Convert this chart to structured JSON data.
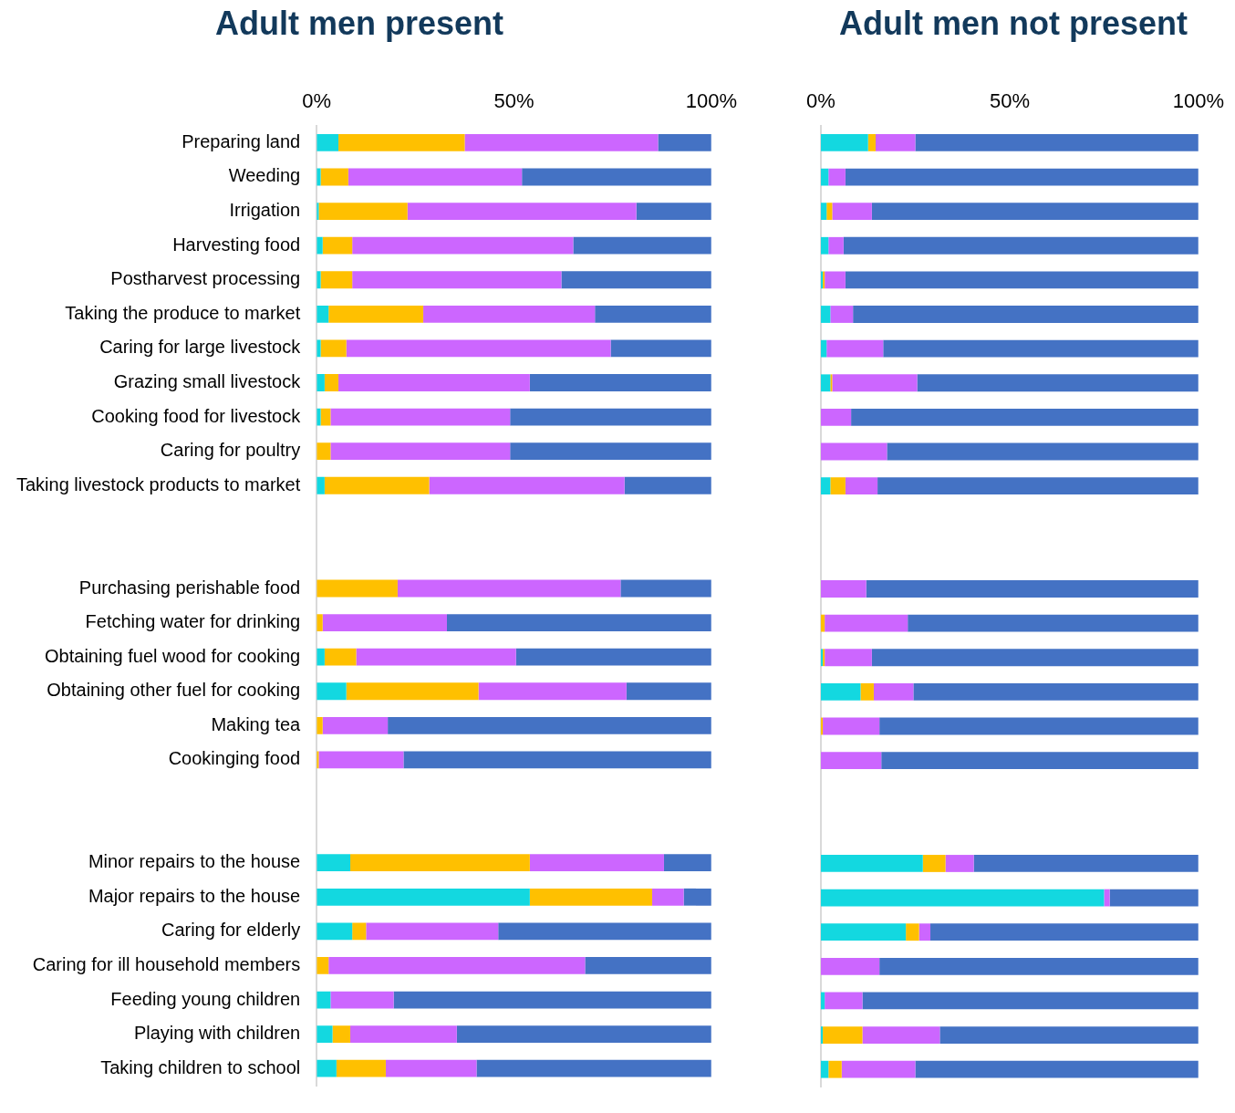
{
  "chart_data": [
    {
      "type": "bar",
      "title": "Adult men present",
      "orientation": "horizontal",
      "stacked": true,
      "legend": false,
      "grid": false,
      "categories": [
        "Preparing land",
        "Weeding",
        "Irrigation",
        "Harvesting food",
        "Postharvest processing",
        "Taking the produce to market",
        "Caring for large livestock",
        "Grazing small livestock",
        "Cooking food for livestock",
        "Caring for poultry",
        "Taking livestock products to market",
        null,
        null,
        "Purchasing perishable food",
        "Fetching water for drinking",
        "Obtaining fuel wood for cooking",
        "Obtaining other fuel for cooking",
        "Making tea",
        "Cookinging food",
        null,
        null,
        "Minor repairs to the house",
        "Major repairs to the house",
        "Caring for elderly",
        "Caring for ill household members",
        "Feeding young children",
        "Playing with children",
        "Taking children to school"
      ],
      "xlim": [
        0,
        100
      ],
      "xticks": [
        {
          "value": 0,
          "label": "0%"
        },
        {
          "value": 50,
          "label": "50%"
        },
        {
          "value": 100,
          "label": "100%"
        }
      ],
      "series": [
        {
          "color": "#13d8e0",
          "values": [
            5.5,
            1,
            0.5,
            1.5,
            1,
            3,
            1,
            2,
            1,
            0,
            2,
            null,
            null,
            0,
            0,
            2,
            7.5,
            0,
            0,
            null,
            null,
            8.5,
            54,
            9,
            0,
            3.5,
            4,
            5
          ]
        },
        {
          "color": "#ffc000",
          "values": [
            32,
            7,
            22.5,
            7.5,
            8,
            24,
            6.5,
            3.5,
            2.5,
            3.5,
            26.5,
            null,
            null,
            20.5,
            1.5,
            8,
            33.5,
            1.5,
            0.5,
            null,
            null,
            45.5,
            31,
            3.5,
            3,
            0,
            4.5,
            12.5
          ]
        },
        {
          "color": "#cc66ff",
          "values": [
            49,
            44,
            58,
            56,
            53,
            43.5,
            67,
            48.5,
            45.5,
            45.5,
            49.5,
            null,
            null,
            56.5,
            31.5,
            40.5,
            37.5,
            16.5,
            21.5,
            null,
            null,
            34,
            8,
            33.5,
            65,
            16,
            27,
            23
          ]
        },
        {
          "color": "#4472c4",
          "values": [
            13.5,
            48,
            19,
            35,
            38,
            29.5,
            25.5,
            46,
            51,
            51,
            22,
            null,
            null,
            23,
            67,
            49.5,
            21.5,
            82,
            78,
            null,
            null,
            12,
            7,
            54,
            32,
            80.5,
            64.5,
            59.5
          ]
        }
      ]
    },
    {
      "type": "bar",
      "title": "Adult men not present",
      "orientation": "horizontal",
      "stacked": true,
      "legend": false,
      "grid": false,
      "tick_labels": "x",
      "categories": [
        null,
        null,
        null,
        null,
        null,
        null,
        null,
        null,
        null,
        null,
        null,
        null,
        null,
        null,
        null,
        null,
        null,
        null,
        null,
        null,
        null,
        null,
        null,
        null,
        null,
        null,
        null,
        null
      ],
      "xlim": [
        0,
        100
      ],
      "xticks": [
        {
          "value": 0,
          "label": "0%"
        },
        {
          "value": 50,
          "label": "50%"
        },
        {
          "value": 100,
          "label": "100%"
        }
      ],
      "series": [
        {
          "color": "#13d8e0",
          "values": [
            12.5,
            2,
            1.5,
            2,
            0.5,
            2.5,
            1.5,
            2.5,
            0,
            0,
            2.5,
            null,
            null,
            0,
            0,
            0.5,
            10.5,
            0,
            0,
            null,
            null,
            27,
            75,
            22.5,
            0,
            1,
            0.5,
            2
          ]
        },
        {
          "color": "#ffc000",
          "values": [
            2,
            0,
            1.5,
            0,
            0.5,
            0,
            0,
            0.5,
            0,
            0,
            4,
            null,
            null,
            0,
            1,
            0.5,
            3.5,
            0.5,
            0,
            null,
            null,
            6,
            0,
            3.5,
            0,
            0,
            10.5,
            3.5
          ]
        },
        {
          "color": "#cc66ff",
          "values": [
            10.5,
            4.5,
            10.5,
            4,
            5.5,
            6,
            15,
            22.5,
            8,
            17.5,
            8.5,
            null,
            null,
            12,
            22,
            12.5,
            10.5,
            15,
            16,
            null,
            null,
            7.5,
            1.5,
            3,
            15.5,
            10,
            20.5,
            19.5
          ]
        },
        {
          "color": "#4472c4",
          "values": [
            75,
            93.5,
            86.5,
            94,
            93.5,
            91.5,
            83.5,
            74.5,
            92,
            82.5,
            85,
            null,
            null,
            88,
            77,
            86.5,
            75.5,
            84.5,
            84,
            null,
            null,
            59.5,
            23.5,
            71,
            84.5,
            89,
            68.5,
            75
          ]
        }
      ]
    }
  ]
}
